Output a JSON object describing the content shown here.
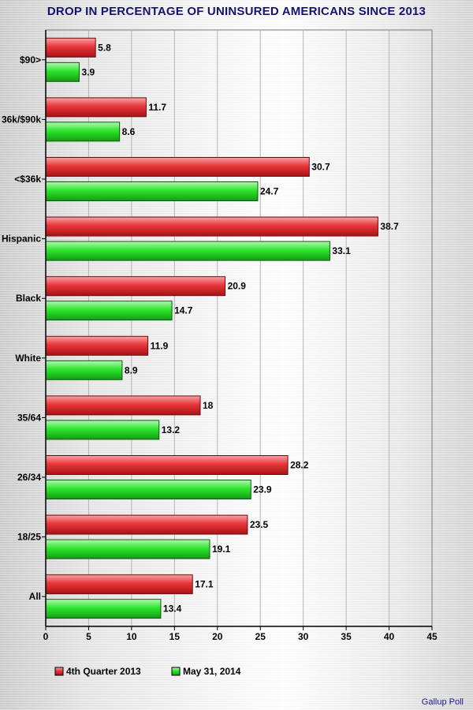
{
  "chart_data": {
    "type": "bar",
    "orientation": "horizontal",
    "title": "DROP IN PERCENTAGE OF UNINSURED AMERICANS SINCE 2013",
    "categories": [
      "$90>",
      "36k/$90k",
      "<$36k",
      "Hispanic",
      "Black",
      "White",
      "35/64",
      "26/34",
      "18/25",
      "All"
    ],
    "series": [
      {
        "name": "4th Quarter 2013",
        "color": "#e8363a",
        "values": [
          5.8,
          11.7,
          30.7,
          38.7,
          20.9,
          11.9,
          18,
          28.2,
          23.5,
          17.1
        ],
        "labels": [
          "5.8",
          "11.7",
          "30.7",
          "38.7",
          "20.9",
          "11.9",
          "18",
          "28.2",
          "23.5",
          "17.1"
        ]
      },
      {
        "name": "May 31, 2014",
        "color": "#2ee62e",
        "values": [
          3.9,
          8.6,
          24.7,
          33.1,
          14.7,
          8.9,
          13.2,
          23.9,
          19.1,
          13.4
        ],
        "labels": [
          "3.9",
          "8.6",
          "24.7",
          "33.1",
          "14.7",
          "8.9",
          "13.2",
          "23.9",
          "19.1",
          "13.4"
        ]
      }
    ],
    "xlim": [
      0,
      45
    ],
    "xticks": [
      "0",
      "5",
      "10",
      "15",
      "20",
      "25",
      "30",
      "35",
      "40",
      "45"
    ],
    "grid": true,
    "legend_position": "bottom-left"
  },
  "source": "Gallup Poll"
}
